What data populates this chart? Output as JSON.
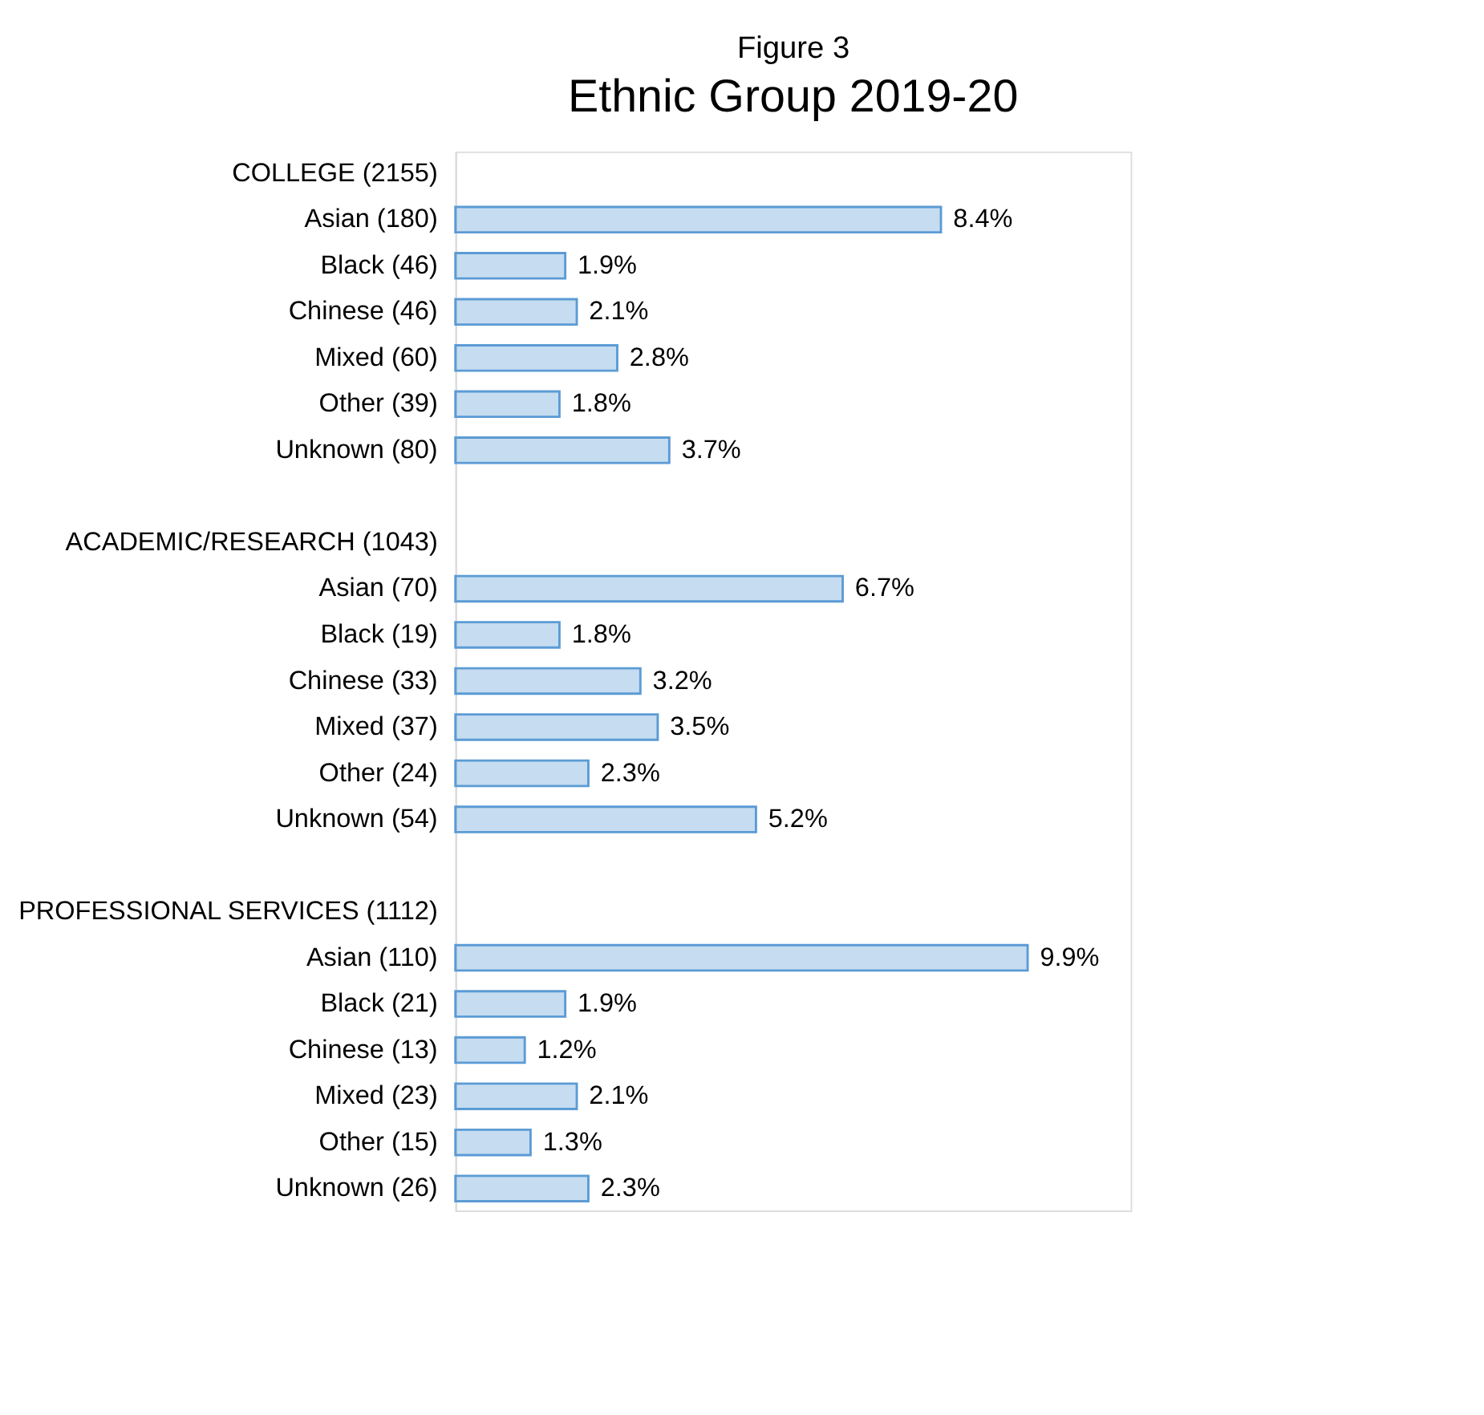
{
  "chart_data": {
    "type": "bar",
    "orientation": "horizontal",
    "title": "Ethnic Group 2019-20",
    "annotations": [
      "Figure 3"
    ],
    "categories": [
      "COLLEGE (2155)",
      "Asian (180)",
      "Black (46)",
      "Chinese (46)",
      "Mixed (60)",
      "Other (39)",
      "Unknown (80)",
      null,
      "ACADEMIC/RESEARCH (1043)",
      "Asian (70)",
      "Black (19)",
      "Chinese (33)",
      "Mixed (37)",
      "Other (24)",
      "Unknown (54)",
      null,
      "PROFESSIONAL SERVICES (1112)",
      "Asian (110)",
      "Black (21)",
      "Chinese (13)",
      "Mixed (23)",
      "Other (15)",
      "Unknown (26)"
    ],
    "values": [
      null,
      8.4,
      1.9,
      2.1,
      2.8,
      1.8,
      3.7,
      null,
      null,
      6.7,
      1.8,
      3.2,
      3.5,
      2.3,
      5.2,
      null,
      null,
      9.9,
      1.9,
      1.2,
      2.1,
      1.3,
      2.3
    ],
    "value_labels": [
      null,
      "8.4%",
      "1.9%",
      "2.1%",
      "2.8%",
      "1.8%",
      "3.7%",
      null,
      null,
      "6.7%",
      "1.8%",
      "3.2%",
      "3.5%",
      "2.3%",
      "5.2%",
      null,
      null,
      "9.9%",
      "1.9%",
      "1.2%",
      "2.1%",
      "1.3%",
      "2.3%"
    ],
    "color": "#5b9bd5",
    "grid": false
  }
}
